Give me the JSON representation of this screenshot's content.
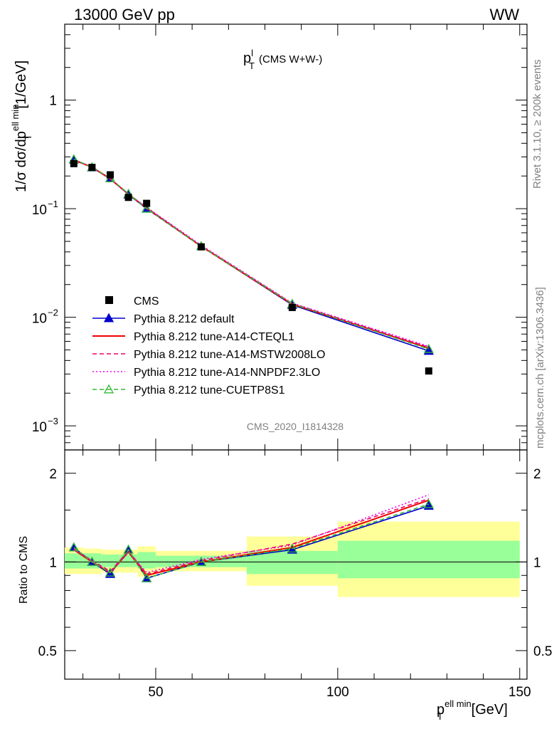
{
  "header": {
    "left": "13000 GeV pp",
    "right": "WW"
  },
  "title": {
    "main": "p",
    "sup": "l",
    "sub": "T",
    "suffix": "(CMS W+W-)"
  },
  "side_text": {
    "rivet": "Rivet 3.1.10, ≥ 200k events",
    "mcplots": "mcplots.cern.ch [arXiv:1306.3436]"
  },
  "watermark": "CMS_2020_I1814328",
  "ylabel_main": {
    "pre": "1/σ dσ/dp",
    "sup": "ell min",
    "sub": "T",
    "post": "[1/GeV]"
  },
  "ylabel_ratio": "Ratio to CMS",
  "xlabel": {
    "pre": "p",
    "sup": "ell min",
    "sub": "T",
    "post": "[GeV]"
  },
  "main_yticks": [
    {
      "base": "10",
      "exp": "−3"
    },
    {
      "base": "10",
      "exp": "−2"
    },
    {
      "base": "10",
      "exp": "−1"
    },
    {
      "base": "1",
      "exp": ""
    }
  ],
  "ratio_yticks": [
    "0.5",
    "1",
    "2"
  ],
  "xticks": [
    "50",
    "100",
    "150"
  ],
  "chart_data": {
    "type": "line",
    "main": {
      "yscale": "log",
      "xlim": [
        25,
        152
      ],
      "ylim": [
        0.0006,
        5
      ],
      "data": {
        "name": "CMS",
        "x": [
          27.5,
          32.5,
          37.5,
          42.5,
          47.5,
          62.5,
          87.5,
          125
        ],
        "y": [
          0.26,
          0.24,
          0.205,
          0.127,
          0.112,
          0.0445,
          0.0123,
          0.0032
        ]
      },
      "series": [
        {
          "name": "Pythia 8.212 default",
          "color": "#0000cc",
          "style": "solid",
          "marker": "triangle-filled",
          "y": [
            0.283,
            0.24,
            0.19,
            0.135,
            0.1,
            0.045,
            0.013,
            0.0049
          ]
        },
        {
          "name": "Pythia 8.212 tune-A14-CTEQL1",
          "color": "#ee0000",
          "style": "solid",
          "marker": "none",
          "y": [
            0.281,
            0.241,
            0.188,
            0.136,
            0.101,
            0.045,
            0.0132,
            0.0052
          ]
        },
        {
          "name": "Pythia 8.212 tune-A14-MSTW2008LO",
          "color": "#ee0066",
          "style": "dashed",
          "marker": "none",
          "y": [
            0.283,
            0.243,
            0.19,
            0.137,
            0.102,
            0.0455,
            0.0134,
            0.0053
          ]
        },
        {
          "name": "Pythia 8.212 tune-A14-NNPDF2.3LO",
          "color": "#ee00ee",
          "style": "dotted",
          "marker": "none",
          "y": [
            0.282,
            0.242,
            0.189,
            0.136,
            0.103,
            0.046,
            0.0135,
            0.0054
          ]
        },
        {
          "name": "Pythia 8.212 tune-CUETP8S1",
          "color": "#33bb33",
          "style": "dashed",
          "marker": "triangle-open",
          "y": [
            0.285,
            0.241,
            0.19,
            0.137,
            0.1,
            0.045,
            0.0133,
            0.0051
          ]
        }
      ]
    },
    "ratio": {
      "yscale": "log",
      "ylim": [
        0.4,
        2.4
      ],
      "bins": [
        [
          25,
          30
        ],
        [
          30,
          35
        ],
        [
          35,
          40
        ],
        [
          40,
          45
        ],
        [
          45,
          50
        ],
        [
          50,
          75
        ],
        [
          75,
          100
        ],
        [
          100,
          150
        ]
      ],
      "band_inner": [
        [
          0.95,
          1.07
        ],
        [
          0.95,
          1.07
        ],
        [
          0.96,
          1.06
        ],
        [
          0.96,
          1.06
        ],
        [
          0.95,
          1.08
        ],
        [
          0.96,
          1.05
        ],
        [
          0.91,
          1.09
        ],
        [
          0.88,
          1.18
        ]
      ],
      "band_outer": [
        [
          0.91,
          1.12
        ],
        [
          0.91,
          1.11
        ],
        [
          0.92,
          1.1
        ],
        [
          0.92,
          1.1
        ],
        [
          0.89,
          1.13
        ],
        [
          0.93,
          1.09
        ],
        [
          0.83,
          1.22
        ],
        [
          0.76,
          1.37
        ]
      ],
      "series": [
        {
          "name": "Pythia 8.212 default",
          "y": [
            1.12,
            1.0,
            0.91,
            1.1,
            0.88,
            1.0,
            1.1,
            1.55
          ]
        },
        {
          "name": "Pythia 8.212 tune-A14-CTEQL1",
          "y": [
            1.1,
            1.0,
            0.92,
            1.08,
            0.9,
            1.0,
            1.12,
            1.62
          ]
        },
        {
          "name": "Pythia 8.212 tune-A14-MSTW2008LO",
          "y": [
            1.11,
            1.01,
            0.93,
            1.09,
            0.91,
            1.01,
            1.15,
            1.64
          ]
        },
        {
          "name": "Pythia 8.212 tune-A14-NNPDF2.3LO",
          "y": [
            1.1,
            1.01,
            0.92,
            1.08,
            0.92,
            1.02,
            1.14,
            1.69
          ]
        },
        {
          "name": "Pythia 8.212 tune-CUETP8S1",
          "y": [
            1.12,
            1.0,
            0.92,
            1.1,
            0.88,
            1.0,
            1.11,
            1.57
          ]
        }
      ]
    }
  }
}
